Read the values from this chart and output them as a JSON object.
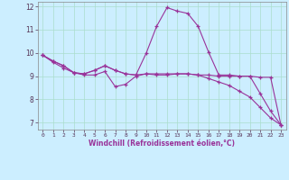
{
  "xlabel": "Windchill (Refroidissement éolien,°C)",
  "bg_color": "#cceeff",
  "line_color": "#993399",
  "x": [
    0,
    1,
    2,
    3,
    4,
    5,
    6,
    7,
    8,
    9,
    10,
    11,
    12,
    13,
    14,
    15,
    16,
    17,
    18,
    19,
    20,
    21,
    22,
    23
  ],
  "line1": [
    9.9,
    9.65,
    9.45,
    9.15,
    9.1,
    9.25,
    9.45,
    9.25,
    9.1,
    9.05,
    10.0,
    11.15,
    11.95,
    11.8,
    11.7,
    11.15,
    10.05,
    9.05,
    9.05,
    9.0,
    9.0,
    8.25,
    7.5,
    6.9
  ],
  "line2": [
    9.9,
    9.65,
    9.45,
    9.15,
    9.1,
    9.25,
    9.45,
    9.25,
    9.1,
    9.05,
    9.1,
    9.1,
    9.1,
    9.1,
    9.1,
    9.05,
    9.05,
    9.0,
    9.0,
    9.0,
    9.0,
    8.95,
    8.95,
    6.9
  ],
  "line3": [
    9.9,
    9.6,
    9.35,
    9.15,
    9.05,
    9.05,
    9.2,
    8.55,
    8.65,
    9.0,
    9.1,
    9.05,
    9.05,
    9.1,
    9.1,
    9.05,
    8.9,
    8.75,
    8.6,
    8.35,
    8.1,
    7.65,
    7.2,
    6.9
  ],
  "ylim": [
    6.7,
    12.2
  ],
  "yticks": [
    7,
    8,
    9,
    10,
    11,
    12
  ],
  "xticks": [
    0,
    1,
    2,
    3,
    4,
    5,
    6,
    7,
    8,
    9,
    10,
    11,
    12,
    13,
    14,
    15,
    16,
    17,
    18,
    19,
    20,
    21,
    22,
    23
  ],
  "grid_color": "#aaddcc",
  "marker": "+"
}
